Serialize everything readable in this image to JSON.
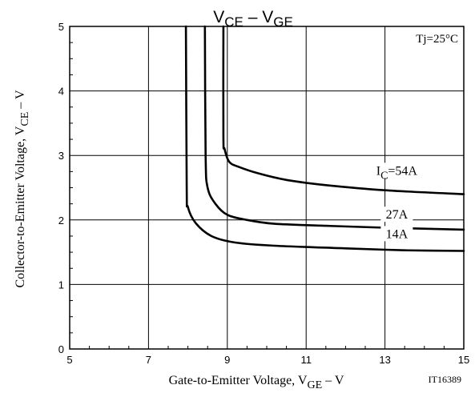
{
  "chart_data": {
    "type": "line",
    "title": {
      "main": "V",
      "sub1": "CE",
      "dash": " – V",
      "sub2": "GE"
    },
    "xlabel": {
      "main": "Gate-to-Emitter Voltage, V",
      "sub": "GE",
      "tail": " – V"
    },
    "ylabel": {
      "main": "Collector-to-Emitter Voltage, V",
      "sub": "CE",
      "tail": " – V"
    },
    "xlim": [
      5,
      15
    ],
    "ylim": [
      0,
      5
    ],
    "xticks": [
      5,
      7,
      9,
      11,
      13,
      15
    ],
    "yticks": [
      0,
      1,
      2,
      3,
      4,
      5
    ],
    "grid": true,
    "annotation": "Tj=25°C",
    "figure_id": "IT16389",
    "line_color": "#000000",
    "series": [
      {
        "label_main": "I",
        "label_sub": "C",
        "label_tail": "=54A",
        "label_at": [
          13.3,
          2.7
        ],
        "points": [
          [
            8.9,
            5.0
          ],
          [
            8.9,
            3.3
          ],
          [
            8.93,
            3.1
          ],
          [
            9.05,
            2.9
          ],
          [
            9.3,
            2.82
          ],
          [
            9.8,
            2.72
          ],
          [
            10.5,
            2.62
          ],
          [
            11.5,
            2.54
          ],
          [
            13.0,
            2.46
          ],
          [
            15.0,
            2.4
          ]
        ]
      },
      {
        "label_main": "",
        "label_sub": "",
        "label_tail": "27A",
        "label_at": [
          13.3,
          2.02
        ],
        "points": [
          [
            8.43,
            5.0
          ],
          [
            8.45,
            3.0
          ],
          [
            8.5,
            2.5
          ],
          [
            8.7,
            2.25
          ],
          [
            9.0,
            2.08
          ],
          [
            9.5,
            2.0
          ],
          [
            10.2,
            1.94
          ],
          [
            11.5,
            1.91
          ],
          [
            13.0,
            1.88
          ],
          [
            15.0,
            1.85
          ]
        ]
      },
      {
        "label_main": "",
        "label_sub": "",
        "label_tail": "14A",
        "label_at": [
          13.3,
          1.72
        ],
        "points": [
          [
            7.95,
            5.0
          ],
          [
            7.97,
            2.5
          ],
          [
            8.0,
            2.2
          ],
          [
            8.2,
            1.95
          ],
          [
            8.6,
            1.75
          ],
          [
            9.2,
            1.65
          ],
          [
            10.2,
            1.6
          ],
          [
            12.0,
            1.56
          ],
          [
            13.5,
            1.53
          ],
          [
            15.0,
            1.52
          ]
        ]
      }
    ]
  }
}
